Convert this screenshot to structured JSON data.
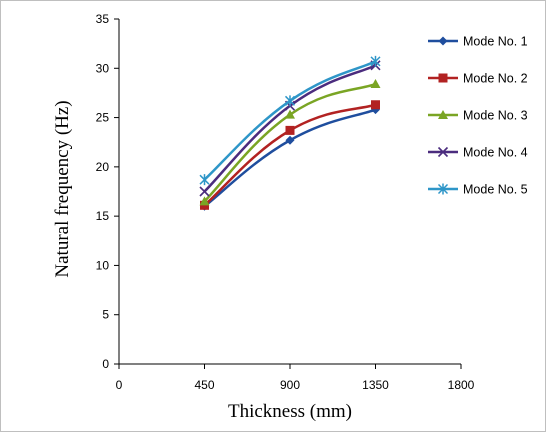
{
  "chart_data": {
    "type": "line",
    "title": "",
    "xlabel": "Thickness (mm)",
    "ylabel": "Natural frequency (Hz)",
    "x": [
      450,
      900,
      1350
    ],
    "xlim": [
      0,
      1800
    ],
    "ylim": [
      0,
      35
    ],
    "xticks": [
      "0",
      "450",
      "900",
      "1350",
      "1800"
    ],
    "yticks": [
      "0",
      "5",
      "10",
      "15",
      "20",
      "25",
      "30",
      "35"
    ],
    "grid": false,
    "legend_position": "right",
    "series": [
      {
        "name": "Mode No. 1",
        "values": [
          16.0,
          22.7,
          25.8
        ],
        "color": "#1F4E9E",
        "marker": "diamond"
      },
      {
        "name": "Mode No. 2",
        "values": [
          16.1,
          23.7,
          26.3
        ],
        "color": "#B22222",
        "marker": "square"
      },
      {
        "name": "Mode No. 3",
        "values": [
          16.5,
          25.3,
          28.4
        ],
        "color": "#7AA524",
        "marker": "triangle"
      },
      {
        "name": "Mode No. 4",
        "values": [
          17.5,
          26.2,
          30.3
        ],
        "color": "#4B2C7E",
        "marker": "x"
      },
      {
        "name": "Mode No. 5",
        "values": [
          18.7,
          26.7,
          30.7
        ],
        "color": "#2E96C8",
        "marker": "asterisk"
      }
    ]
  }
}
